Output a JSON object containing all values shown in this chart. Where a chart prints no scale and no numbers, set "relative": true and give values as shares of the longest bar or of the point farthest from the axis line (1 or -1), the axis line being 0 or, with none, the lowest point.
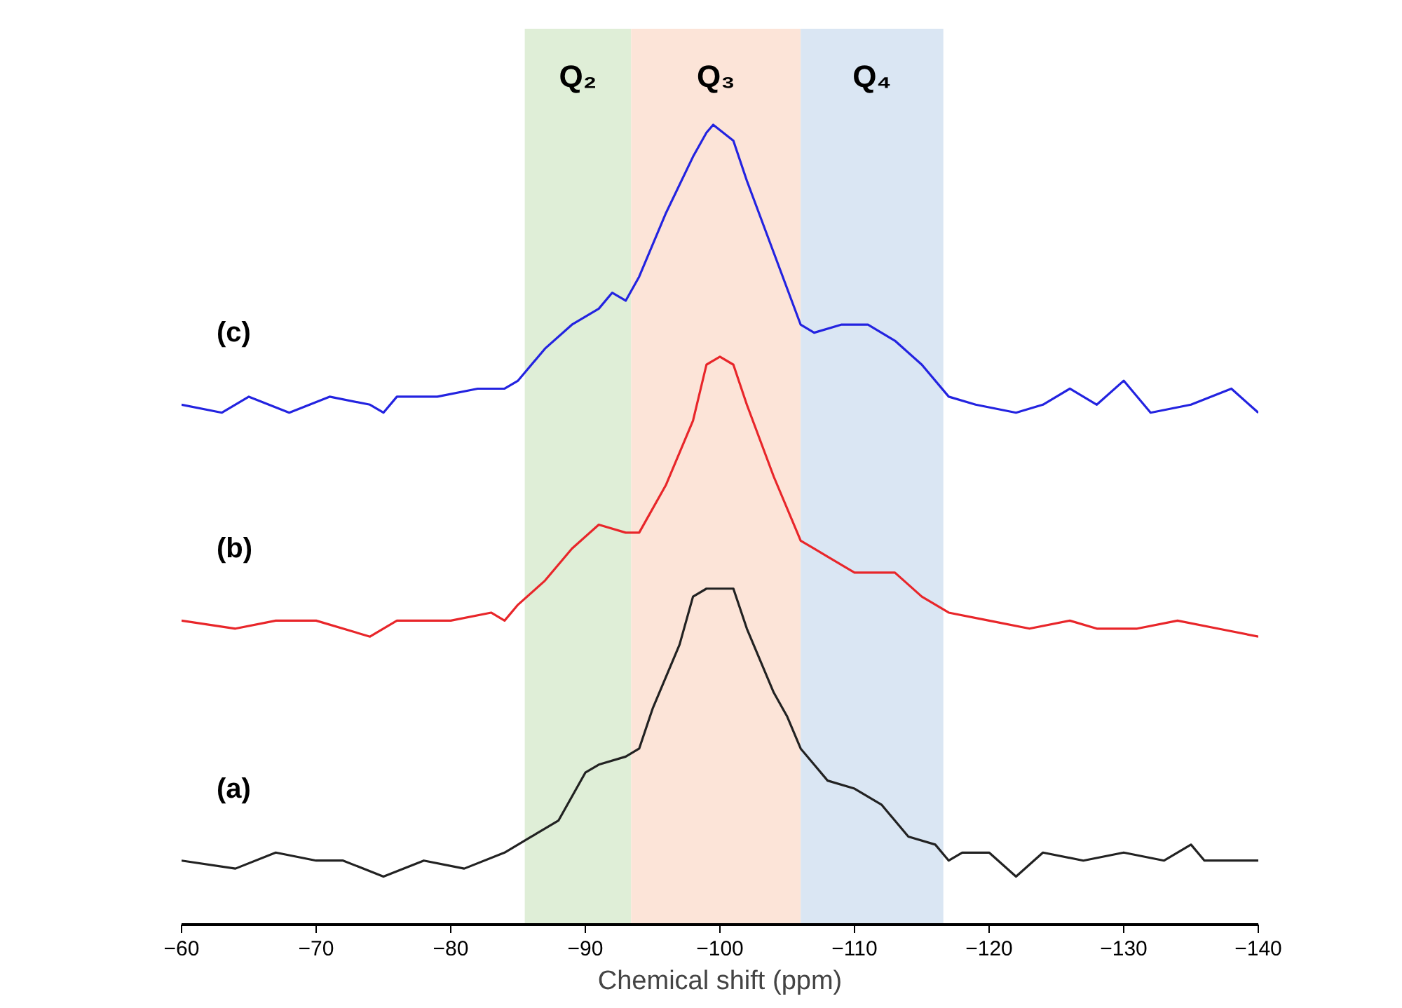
{
  "chart_data": {
    "type": "line",
    "relative": true,
    "xlabel": "Chemical shift (ppm)",
    "xlim": [
      -60,
      -140
    ],
    "xticks": [
      -60,
      -70,
      -80,
      -90,
      -100,
      -110,
      -120,
      -130,
      -140
    ],
    "bands": [
      {
        "axis": "x",
        "from": -85.5,
        "to": -93.4,
        "label": "Q₂",
        "color": "#dfeed7"
      },
      {
        "axis": "x",
        "from": -93.4,
        "to": -106.0,
        "label": "Q₃",
        "color": "#fce4d8"
      },
      {
        "axis": "x",
        "from": -106.0,
        "to": -116.6,
        "label": "Q₄",
        "color": "#dae6f3"
      }
    ],
    "series": [
      {
        "name": "(a)",
        "color": "#222222",
        "x": [
          -60,
          -64,
          -67,
          -70,
          -72,
          -75,
          -78,
          -81,
          -84,
          -86,
          -88,
          -90,
          -91,
          -93,
          -94,
          -95,
          -97,
          -98,
          -99,
          -100,
          -101,
          -102,
          -104,
          -105,
          -106,
          -107,
          -108,
          -110,
          -112,
          -114,
          -116,
          -117,
          -118,
          -120,
          -122,
          -124,
          -127,
          -130,
          -133,
          -135,
          -136,
          -140
        ],
        "values": [
          0.08,
          0.07,
          0.09,
          0.08,
          0.08,
          0.06,
          0.08,
          0.07,
          0.09,
          0.11,
          0.13,
          0.19,
          0.2,
          0.21,
          0.22,
          0.27,
          0.35,
          0.41,
          0.42,
          0.42,
          0.42,
          0.37,
          0.29,
          0.26,
          0.22,
          0.2,
          0.18,
          0.17,
          0.15,
          0.11,
          0.1,
          0.08,
          0.09,
          0.09,
          0.06,
          0.09,
          0.08,
          0.09,
          0.08,
          0.1,
          0.08,
          0.08
        ]
      },
      {
        "name": "(b)",
        "color": "#e8262a",
        "x": [
          -60,
          -64,
          -67,
          -70,
          -74,
          -76,
          -80,
          -83,
          -84,
          -85,
          -87,
          -89,
          -91,
          -93,
          -94,
          -96,
          -98,
          -99,
          -100,
          -101,
          -102,
          -104,
          -106,
          -107,
          -108,
          -110,
          -112,
          -113,
          -115,
          -117,
          -120,
          -123,
          -126,
          -128,
          -131,
          -134,
          -137,
          -140
        ],
        "values": [
          0.38,
          0.37,
          0.38,
          0.38,
          0.36,
          0.38,
          0.38,
          0.39,
          0.38,
          0.4,
          0.43,
          0.47,
          0.5,
          0.49,
          0.49,
          0.55,
          0.63,
          0.7,
          0.71,
          0.7,
          0.65,
          0.56,
          0.48,
          0.47,
          0.46,
          0.44,
          0.44,
          0.44,
          0.41,
          0.39,
          0.38,
          0.37,
          0.38,
          0.37,
          0.37,
          0.38,
          0.37,
          0.36
        ]
      },
      {
        "name": "(c)",
        "color": "#2323e0",
        "x": [
          -60,
          -63,
          -65,
          -68,
          -71,
          -74,
          -75,
          -76,
          -79,
          -82,
          -84,
          -85,
          -87,
          -89,
          -91,
          -92,
          -93,
          -94,
          -96,
          -98,
          -99,
          -99.5,
          -101,
          -102,
          -104,
          -106,
          -107,
          -109,
          -111,
          -113,
          -115,
          -117,
          -119,
          -122,
          -124,
          -126,
          -128,
          -130,
          -132,
          -135,
          -138,
          -140
        ],
        "values": [
          0.65,
          0.64,
          0.66,
          0.64,
          0.66,
          0.65,
          0.64,
          0.66,
          0.66,
          0.67,
          0.67,
          0.68,
          0.72,
          0.75,
          0.77,
          0.79,
          0.78,
          0.81,
          0.89,
          0.96,
          0.99,
          1,
          0.98,
          0.93,
          0.84,
          0.75,
          0.74,
          0.75,
          0.75,
          0.73,
          0.7,
          0.66,
          0.65,
          0.64,
          0.65,
          0.67,
          0.65,
          0.68,
          0.64,
          0.65,
          0.67,
          0.64
        ]
      }
    ]
  }
}
